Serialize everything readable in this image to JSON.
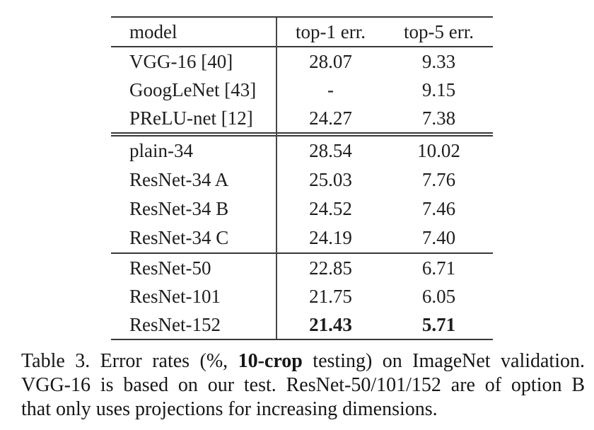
{
  "page": {
    "background_color": "#ffffff",
    "text_color": "#1e1e1e",
    "rule_color": "#383838"
  },
  "table": {
    "header": {
      "model": "model",
      "top1": "top-1 err.",
      "top5": "top-5 err."
    },
    "sections": [
      {
        "rows": [
          {
            "model": "VGG-16 [40]",
            "top1": "28.07",
            "top5": "9.33"
          },
          {
            "model": "GoogLeNet [43]",
            "top1": "-",
            "top5": "9.15"
          },
          {
            "model": "PReLU-net [12]",
            "top1": "24.27",
            "top5": "7.38"
          }
        ]
      },
      {
        "rows": [
          {
            "model": "plain-34",
            "top1": "28.54",
            "top5": "10.02"
          },
          {
            "model": "ResNet-34 A",
            "top1": "25.03",
            "top5": "7.76"
          },
          {
            "model": "ResNet-34 B",
            "top1": "24.52",
            "top5": "7.46"
          },
          {
            "model": "ResNet-34 C",
            "top1": "24.19",
            "top5": "7.40"
          }
        ]
      },
      {
        "rows": [
          {
            "model": "ResNet-50",
            "top1": "22.85",
            "top5": "6.71"
          },
          {
            "model": "ResNet-101",
            "top1": "21.75",
            "top5": "6.05"
          },
          {
            "model": "ResNet-152",
            "top1": "21.43",
            "top5": "5.71",
            "emphasis": "bold"
          }
        ]
      }
    ]
  },
  "caption": {
    "line1_pre": "Table 3. Error rates (%, ",
    "line1_bold": "10-crop",
    "line1_post": " testing) on ImageNet validation.",
    "line2": "VGG-16 is based on our test. ResNet-50/101/152 are of option B",
    "line3": "that only uses projections for increasing dimensions."
  }
}
